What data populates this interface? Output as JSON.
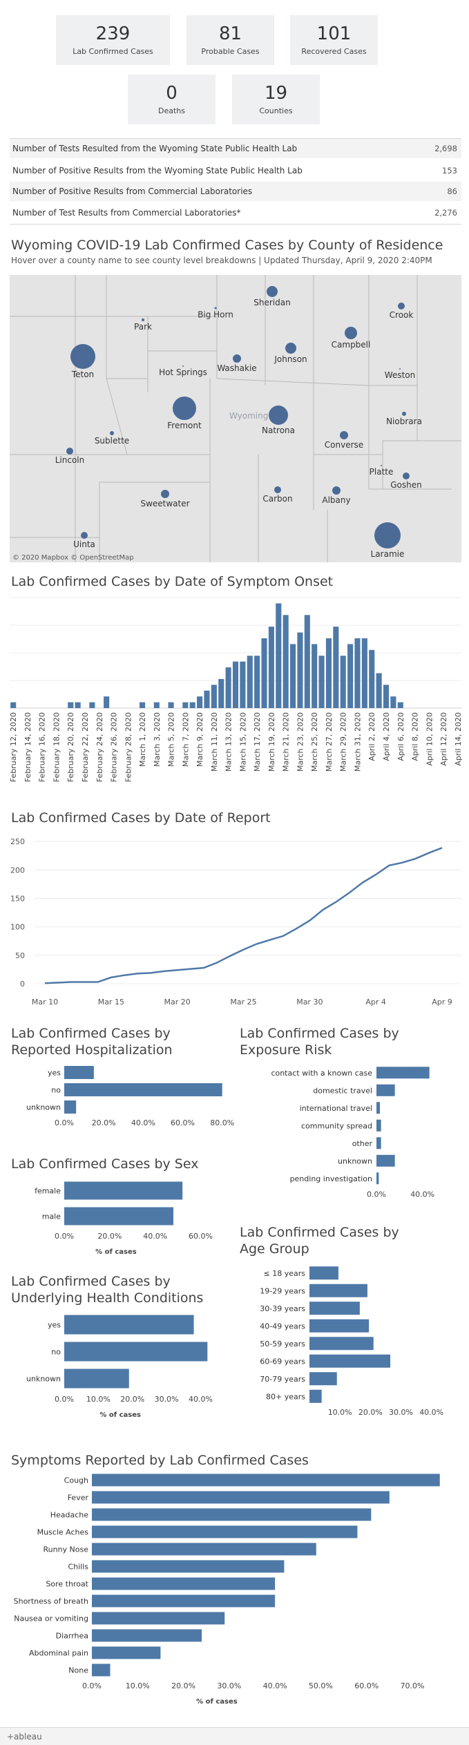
{
  "kpis": {
    "row1": [
      {
        "value": "239",
        "label": "Lab Confirmed Cases"
      },
      {
        "value": "81",
        "label": "Probable Cases"
      },
      {
        "value": "101",
        "label": "Recovered Cases"
      }
    ],
    "row2": [
      {
        "value": "0",
        "label": "Deaths"
      },
      {
        "value": "19",
        "label": "Counties"
      }
    ]
  },
  "stats": [
    {
      "label": "Number of Tests Resulted from the Wyoming State Public Health Lab",
      "value": "2,698"
    },
    {
      "label": "Number of Positive Results from the Wyoming State Public Health Lab",
      "value": "153"
    },
    {
      "label": "Number of Positive Results from Commercial Laboratories",
      "value": "86"
    },
    {
      "label": "Number of Test Results from Commercial Laboratories*",
      "value": "2,276"
    }
  ],
  "map": {
    "title": "Wyoming COVID-19 Lab Confirmed Cases by County of Residence",
    "subtitle": "Hover over a county name to see county level breakdowns | Updated Thursday, April 9, 2020 2:40PM",
    "state_label": "Wyoming",
    "attribution": "© 2020 Mapbox © OpenStreetMap",
    "bubble_color": "#4b6a96",
    "counties": [
      "Sheridan",
      "Crook",
      "Big Horn",
      "Park",
      "Campbell",
      "Johnson",
      "Teton",
      "Washakie",
      "Hot Springs",
      "Weston",
      "Fremont",
      "Natrona",
      "Niobrara",
      "Sublette",
      "Converse",
      "Lincoln",
      "Platte",
      "Goshen",
      "Sweetwater",
      "Carbon",
      "Albany",
      "Laramie",
      "Uinta"
    ]
  },
  "onset": {
    "title": "Lab Confirmed Cases by Date of Symptom Onset"
  },
  "report": {
    "title": "Lab Confirmed Cases by Date of Report"
  },
  "hospitalization": {
    "title": "Lab Confirmed Cases by Reported Hospitalization"
  },
  "exposure": {
    "title": "Lab Confirmed Cases by Exposure Risk"
  },
  "sex": {
    "title": "Lab Confirmed Cases by Sex",
    "axis_title": "% of cases"
  },
  "agegroup": {
    "title": "Lab Confirmed Cases by Age Group"
  },
  "conditions": {
    "title": "Lab Confirmed Cases by Underlying Health Conditions",
    "axis_title": "% of cases"
  },
  "symptoms": {
    "title": "Symptoms Reported by Lab Confirmed Cases",
    "axis_title": "% of cases"
  },
  "footer": {
    "brand": "+ableau"
  },
  "colors": {
    "bar": "#4e79a7",
    "line": "#4e79a7"
  },
  "chart_data": [
    {
      "id": "onset",
      "type": "bar",
      "categories": [
        "February 12, 2020",
        "February 13, 2020",
        "February 14, 2020",
        "February 15, 2020",
        "February 16, 2020",
        "February 17, 2020",
        "February 18, 2020",
        "February 19, 2020",
        "February 20, 2020",
        "February 21, 2020",
        "February 22, 2020",
        "February 23, 2020",
        "February 24, 2020",
        "February 25, 2020",
        "February 26, 2020",
        "February 27, 2020",
        "February 28, 2020",
        "February 29, 2020",
        "March 1, 2020",
        "March 2, 2020",
        "March 3, 2020",
        "March 4, 2020",
        "March 5, 2020",
        "March 6, 2020",
        "March 7, 2020",
        "March 8, 2020",
        "March 9, 2020",
        "March 10, 2020",
        "March 11, 2020",
        "March 12, 2020",
        "March 13, 2020",
        "March 14, 2020",
        "March 15, 2020",
        "March 16, 2020",
        "March 17, 2020",
        "March 18, 2020",
        "March 19, 2020",
        "March 20, 2020",
        "March 21, 2020",
        "March 22, 2020",
        "March 23, 2020",
        "March 24, 2020",
        "March 25, 2020",
        "March 26, 2020",
        "March 27, 2020",
        "March 28, 2020",
        "March 29, 2020",
        "March 30, 2020",
        "March 31, 2020",
        "April 1, 2020",
        "April 2, 2020",
        "April 3, 2020",
        "April 4, 2020",
        "April 5, 2020",
        "April 6, 2020",
        "April 7, 2020",
        "April 8, 2020",
        "April 9, 2020",
        "April 10, 2020",
        "April 11, 2020",
        "April 12, 2020",
        "April 13, 2020",
        "April 14, 2020"
      ],
      "tick_labels": [
        "February 12, 2020",
        "February 14, 2020",
        "February 16, 2020",
        "February 18, 2020",
        "February 20, 2020",
        "February 22, 2020",
        "February 24, 2020",
        "February 26, 2020",
        "February 28, 2020",
        "March 1, 2020",
        "March 3, 2020",
        "March 5, 2020",
        "March 7, 2020",
        "March 9, 2020",
        "March 11, 2020",
        "March 13, 2020",
        "March 15, 2020",
        "March 17, 2020",
        "March 19, 2020",
        "March 21, 2020",
        "March 23, 2020",
        "March 25, 2020",
        "March 27, 2020",
        "March 29, 2020",
        "March 31, 2020",
        "April 2, 2020",
        "April 4, 2020",
        "April 6, 2020",
        "April 8, 2020",
        "April 10, 2020",
        "April 12, 2020",
        "April 14, 2020"
      ],
      "values": [
        1,
        0,
        0,
        0,
        0,
        0,
        0,
        0,
        1,
        1,
        0,
        1,
        0,
        2,
        0,
        0,
        0,
        0,
        1,
        0,
        1,
        0,
        1,
        0,
        1,
        1,
        2,
        3,
        4,
        5,
        7,
        8,
        8,
        9,
        9,
        12,
        14,
        18,
        16,
        11,
        13,
        16,
        11,
        9,
        12,
        14,
        9,
        11,
        12,
        12,
        10,
        6,
        4,
        2,
        1,
        0,
        0,
        0,
        0,
        0,
        0,
        0,
        0
      ],
      "ylim": [
        0,
        19
      ]
    },
    {
      "id": "report",
      "type": "line",
      "x_tick_labels": [
        "Mar 10",
        "Mar 15",
        "Mar 20",
        "Mar 25",
        "Mar 30",
        "Apr 4",
        "Apr 9"
      ],
      "y_ticks": [
        0,
        50,
        100,
        150,
        200,
        250
      ],
      "x": [
        "Mar 10",
        "Mar 11",
        "Mar 12",
        "Mar 13",
        "Mar 14",
        "Mar 15",
        "Mar 16",
        "Mar 17",
        "Mar 18",
        "Mar 19",
        "Mar 20",
        "Mar 21",
        "Mar 22",
        "Mar 23",
        "Mar 24",
        "Mar 25",
        "Mar 26",
        "Mar 27",
        "Mar 28",
        "Mar 29",
        "Mar 30",
        "Mar 31",
        "Apr 1",
        "Apr 2",
        "Apr 3",
        "Apr 4",
        "Apr 5",
        "Apr 6",
        "Apr 7",
        "Apr 8",
        "Apr 9"
      ],
      "values": [
        1,
        2,
        3,
        3,
        3,
        11,
        15,
        18,
        19,
        22,
        24,
        26,
        28,
        37,
        49,
        60,
        70,
        77,
        84,
        97,
        111,
        130,
        144,
        160,
        178,
        192,
        208,
        213,
        220,
        230,
        239
      ],
      "ylim": [
        0,
        260
      ]
    },
    {
      "id": "hospitalization",
      "type": "bar",
      "categories": [
        "yes",
        "no",
        "unknown"
      ],
      "values": [
        15,
        80,
        6
      ],
      "x_ticks": [
        "0.0%",
        "20.0%",
        "40.0%",
        "60.0%",
        "80.0%"
      ],
      "xlim": [
        0,
        85
      ]
    },
    {
      "id": "exposure",
      "type": "bar",
      "categories": [
        "contact with a known case",
        "domestic travel",
        "international travel",
        "community spread",
        "other",
        "unknown",
        "pending investigation"
      ],
      "values": [
        46,
        16,
        3,
        4,
        4,
        16,
        2
      ],
      "x_ticks": [
        "0.0%",
        "40.0%"
      ],
      "xlim": [
        0,
        60
      ]
    },
    {
      "id": "sex",
      "type": "bar",
      "categories": [
        "female",
        "male"
      ],
      "values": [
        52,
        48
      ],
      "x_ticks": [
        "0.0%",
        "20.0%",
        "40.0%",
        "60.0%"
      ],
      "xlim": [
        0,
        65
      ],
      "xlabel": "% of cases"
    },
    {
      "id": "agegroup",
      "type": "bar",
      "categories": [
        "≤ 18 years",
        "19-29 years",
        "30-39 years",
        "40-49 years",
        "50-59 years",
        "60-69 years",
        "70-79 years",
        "80+ years"
      ],
      "values": [
        9.5,
        19,
        16.5,
        19.5,
        21,
        26.5,
        9,
        4
      ],
      "x_ticks": [
        "10.0%",
        "20.0%",
        "30.0%",
        "40.0%"
      ],
      "xlim": [
        0,
        48
      ]
    },
    {
      "id": "conditions",
      "type": "bar",
      "categories": [
        "yes",
        "no",
        "unknown"
      ],
      "values": [
        38,
        42,
        19
      ],
      "x_ticks": [
        "0.0%",
        "10.0%",
        "20.0%",
        "30.0%",
        "40.0%"
      ],
      "xlim": [
        0,
        47
      ],
      "xlabel": "% of cases"
    },
    {
      "id": "symptoms",
      "type": "bar",
      "categories": [
        "Cough",
        "Fever",
        "Headache",
        "Muscle Aches",
        "Runny Nose",
        "Chills",
        "Sore throat",
        "Shortness of breath",
        "Nausea or vomiting",
        "Diarrhea",
        "Abdominal pain",
        "None"
      ],
      "values": [
        76,
        65,
        61,
        58,
        49,
        42,
        40,
        40,
        29,
        24,
        15,
        4
      ],
      "x_ticks": [
        "0.0%",
        "10.0%",
        "20.0%",
        "30.0%",
        "40.0%",
        "50.0%",
        "60.0%",
        "70.0%"
      ],
      "xlim": [
        0,
        78
      ],
      "xlabel": "% of cases"
    }
  ]
}
